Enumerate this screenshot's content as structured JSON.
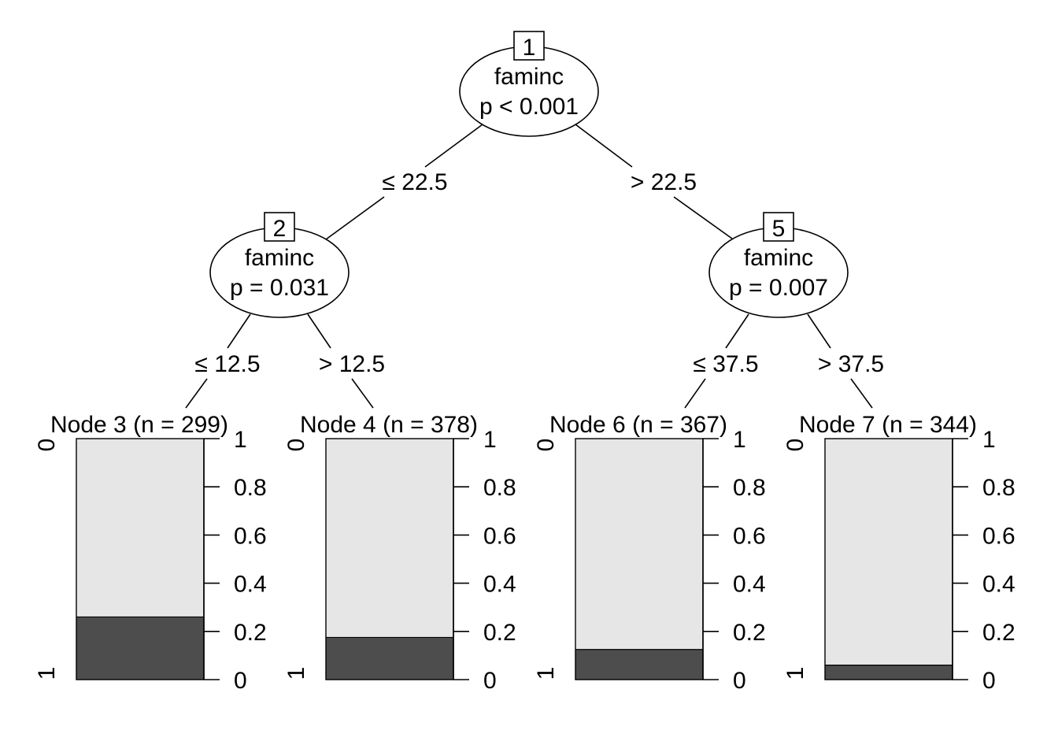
{
  "inner_nodes": [
    {
      "id": "1",
      "variable": "faminc",
      "p_text": "p < 0.001"
    },
    {
      "id": "2",
      "variable": "faminc",
      "p_text": "p = 0.031"
    },
    {
      "id": "5",
      "variable": "faminc",
      "p_text": "p = 0.007"
    }
  ],
  "edges": [
    {
      "from": "1",
      "to": "2",
      "label": "≤ 22.5"
    },
    {
      "from": "1",
      "to": "5",
      "label": "> 22.5"
    },
    {
      "from": "2",
      "to": "3",
      "label": "≤ 12.5"
    },
    {
      "from": "2",
      "to": "4",
      "label": "> 12.5"
    },
    {
      "from": "5",
      "to": "6",
      "label": "≤ 37.5"
    },
    {
      "from": "5",
      "to": "7",
      "label": "> 37.5"
    }
  ],
  "terminal_nodes": [
    {
      "id": "3",
      "title": "Node 3 (n = 299)",
      "prop_class1": 0.26
    },
    {
      "id": "4",
      "title": "Node 4 (n = 378)",
      "prop_class1": 0.175
    },
    {
      "id": "6",
      "title": "Node 6 (n = 367)",
      "prop_class1": 0.125
    },
    {
      "id": "7",
      "title": "Node 7 (n = 344)",
      "prop_class1": 0.06
    }
  ],
  "bar_axis": {
    "class_labels": [
      "0",
      "1"
    ],
    "ticks": [
      0,
      0.2,
      0.4,
      0.6,
      0.8,
      1
    ],
    "tick_labels": [
      "0",
      "0.2",
      "0.4",
      "0.6",
      "0.8",
      "1"
    ]
  },
  "colors": {
    "class0_fill": "#e6e6e6",
    "class1_fill": "#4d4d4d"
  }
}
